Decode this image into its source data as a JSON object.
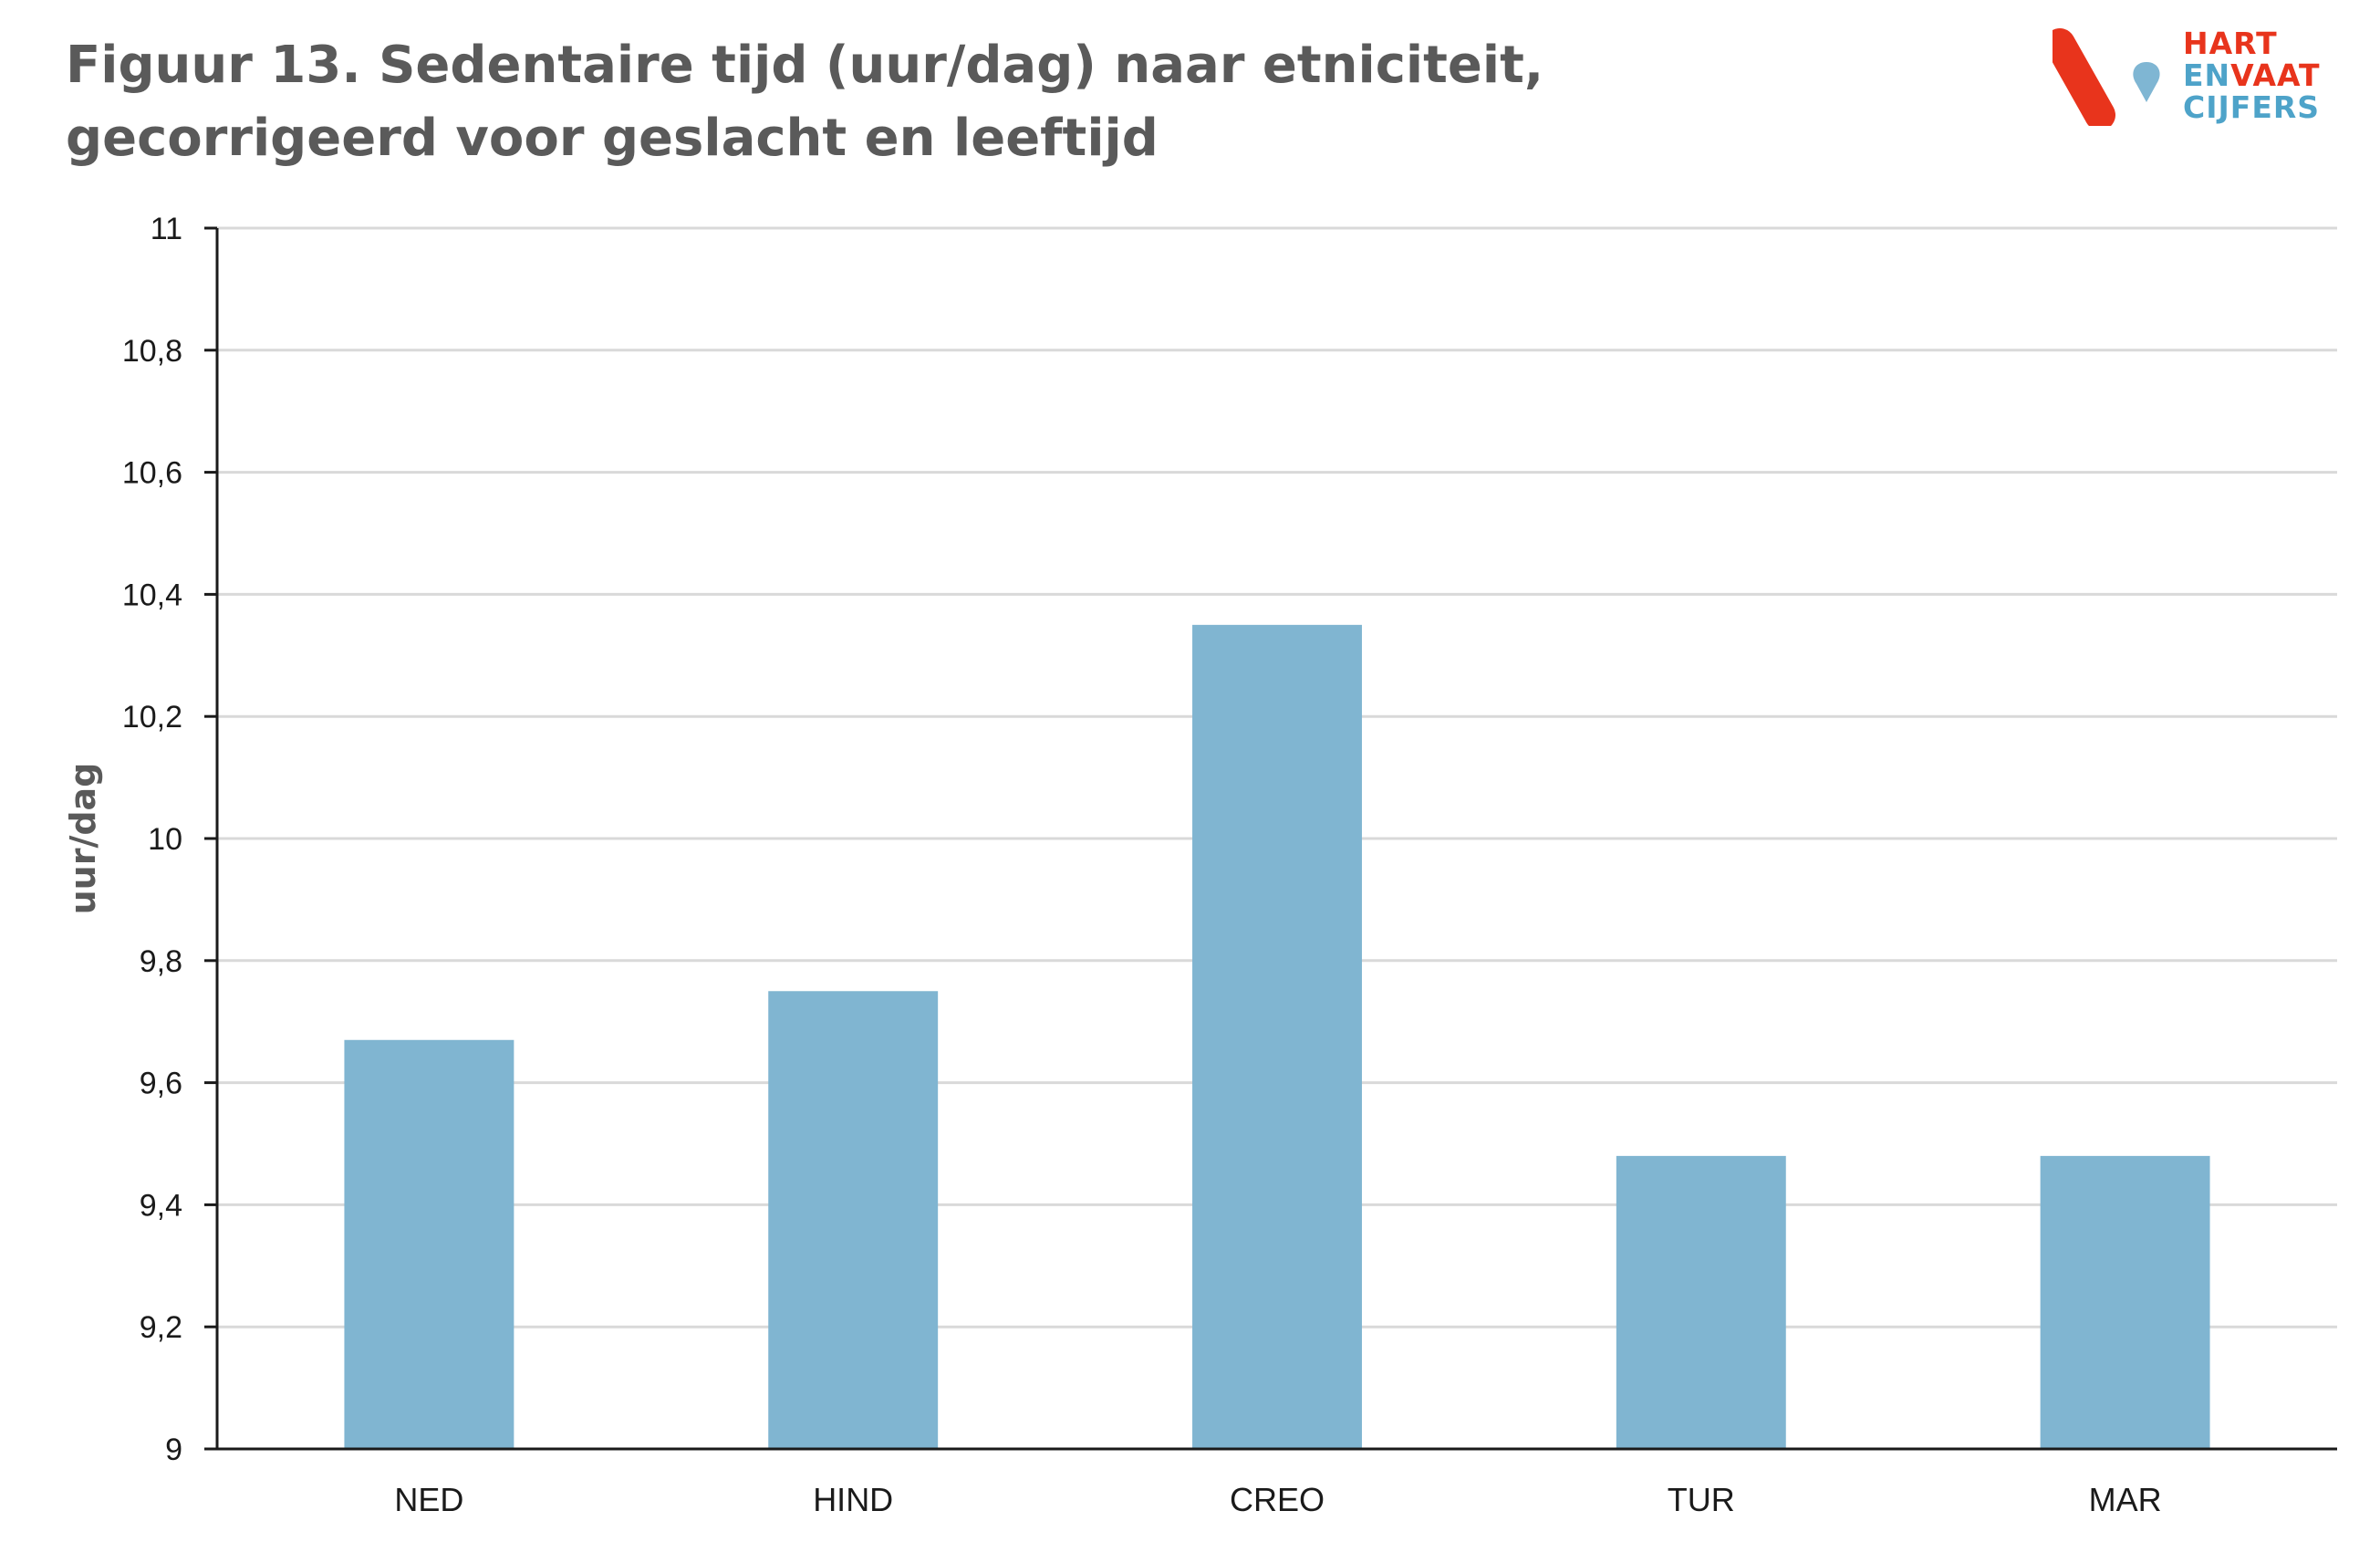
{
  "header": {
    "title": "Figuur 13. Sedentaire tijd (uur/dag) naar etniciteit, gecorrigeerd voor geslacht en leeftijd"
  },
  "logo": {
    "line1": "HART",
    "line2a": "EN",
    "line2b": "VAAT",
    "line3": "CIJFERS",
    "colors": {
      "red": "#e8341c",
      "blue": "#7fb6d3"
    }
  },
  "chart_data": {
    "type": "bar",
    "title": "Figuur 13. Sedentaire tijd (uur/dag) naar etniciteit, gecorrigeerd voor geslacht en leeftijd",
    "categories": [
      "NED",
      "HIND",
      "CREO",
      "TUR",
      "MAR"
    ],
    "values": [
      9.67,
      9.75,
      10.35,
      9.48,
      9.48
    ],
    "ylabel": "uur/dag",
    "xlabel": "",
    "ylim": [
      9,
      11
    ],
    "yticks": [
      "9",
      "9,2",
      "9,4",
      "9,6",
      "9,8",
      "10",
      "10,2",
      "10,4",
      "10,6",
      "10,8",
      "11"
    ],
    "grid": true,
    "legend": "none",
    "bar_color": "#80b5d1"
  }
}
